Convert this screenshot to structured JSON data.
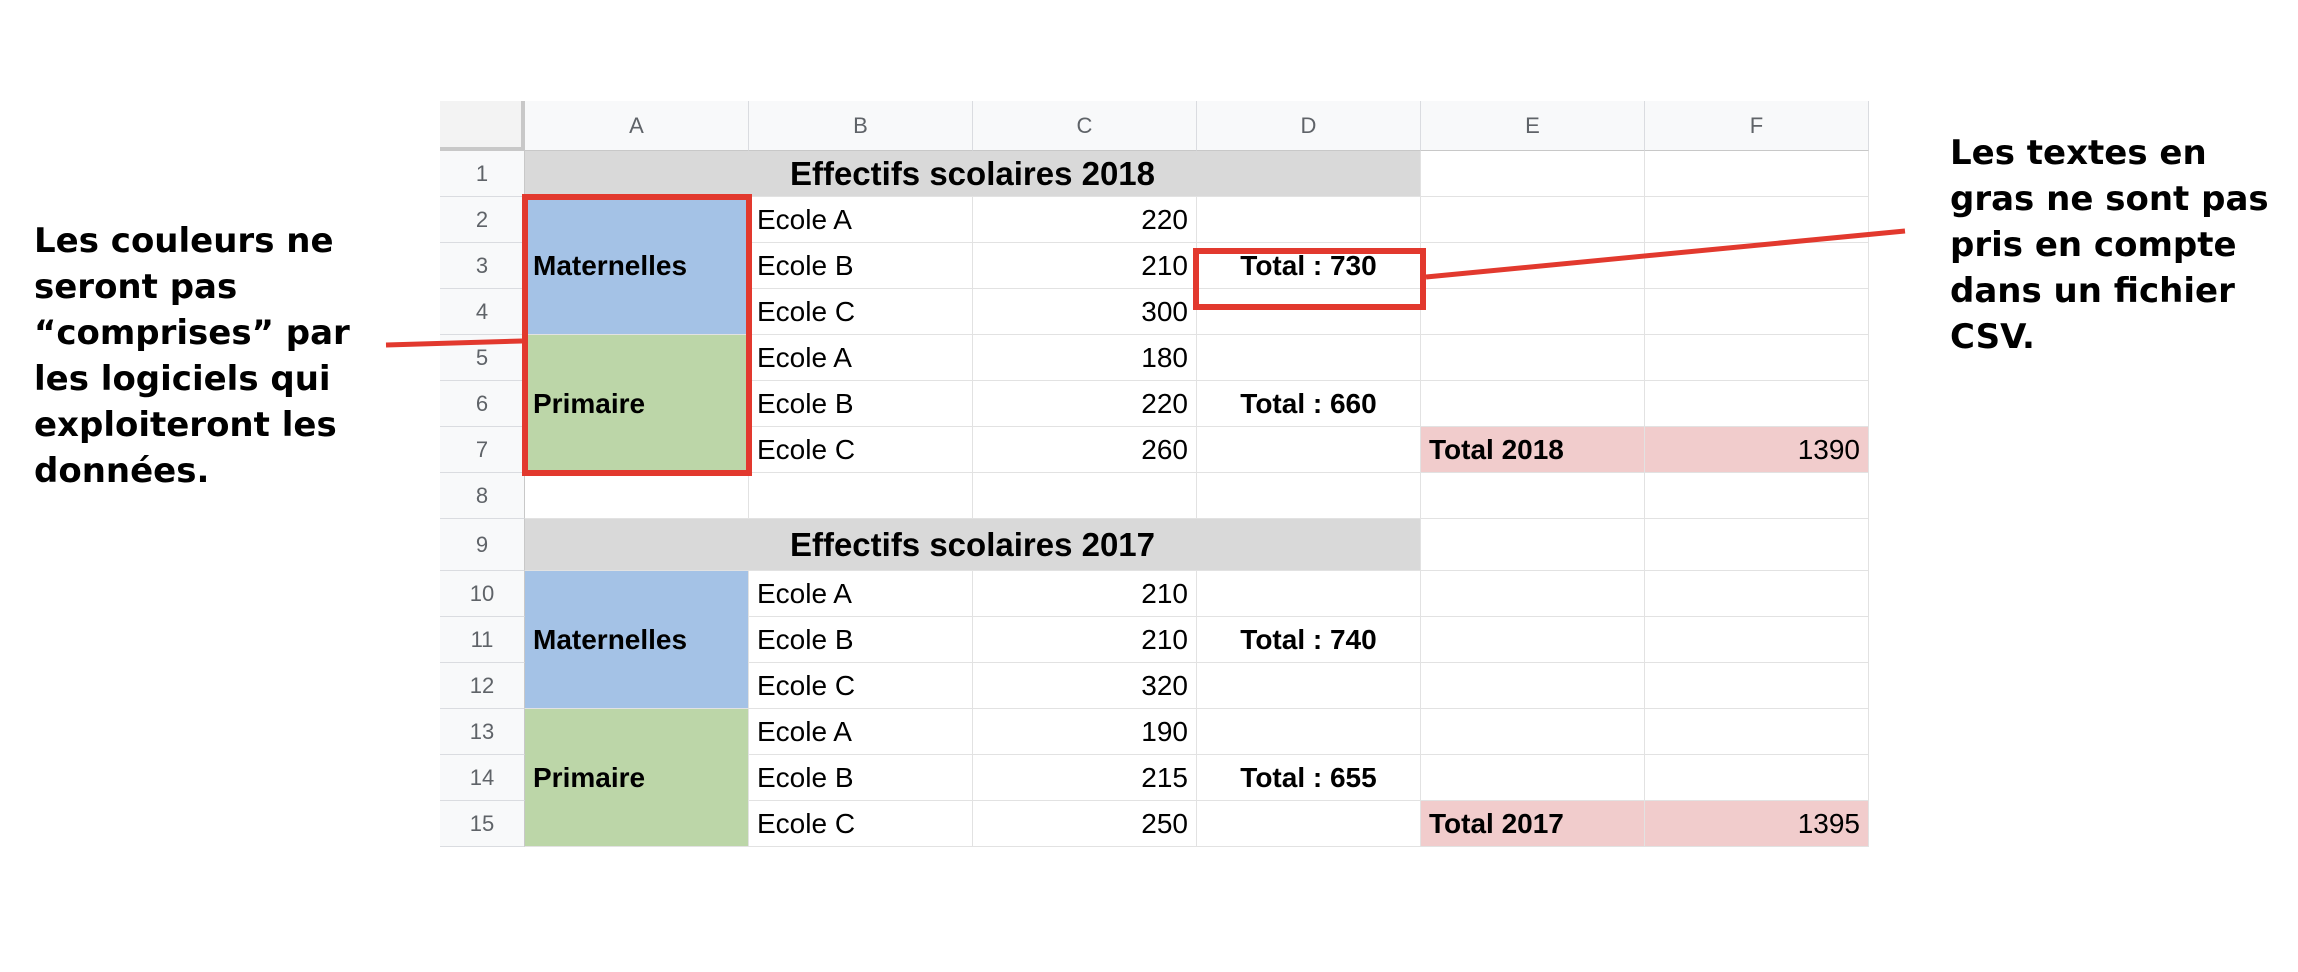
{
  "spreadsheet": {
    "columns": [
      "A",
      "B",
      "C",
      "D",
      "E",
      "F"
    ],
    "rows": [
      "1",
      "2",
      "3",
      "4",
      "5",
      "6",
      "7",
      "8",
      "9",
      "10",
      "11",
      "12",
      "13",
      "14",
      "15"
    ],
    "title_2018": "Effectifs scolaires 2018",
    "title_2017": "Effectifs scolaires 2017",
    "group_maternelles": "Maternelles",
    "group_primaire": "Primaire",
    "schools_2018": [
      {
        "name": "Ecole A",
        "value": "220"
      },
      {
        "name": "Ecole B",
        "value": "210"
      },
      {
        "name": "Ecole C",
        "value": "300"
      },
      {
        "name": "Ecole A",
        "value": "180"
      },
      {
        "name": "Ecole B",
        "value": "220"
      },
      {
        "name": "Ecole C",
        "value": "260"
      }
    ],
    "schools_2017": [
      {
        "name": "Ecole A",
        "value": "210"
      },
      {
        "name": "Ecole B",
        "value": "210"
      },
      {
        "name": "Ecole C",
        "value": "320"
      },
      {
        "name": "Ecole A",
        "value": "190"
      },
      {
        "name": "Ecole B",
        "value": "215"
      },
      {
        "name": "Ecole C",
        "value": "250"
      }
    ],
    "subtotals_2018": [
      "Total : 730",
      "Total : 660"
    ],
    "subtotals_2017": [
      "Total : 740",
      "Total : 655"
    ],
    "grand_total_2018_label": "Total 2018",
    "grand_total_2018_value": "1390",
    "grand_total_2017_label": "Total 2017",
    "grand_total_2017_value": "1395"
  },
  "annotations": {
    "left": "Les couleurs ne\nseront pas\n“comprises” par\nles logiciels qui\nexploiteront les\ndonnées.",
    "right": "Les textes en\ngras ne sont pas\npris en compte\ndans un fichier\nCSV."
  },
  "colors": {
    "highlight": "#e2392e",
    "maternelles_fill": "#a4c2e6",
    "primaire_fill": "#bcd6a8",
    "title_fill": "#d9d9d9",
    "total_fill": "#f1cccc"
  }
}
